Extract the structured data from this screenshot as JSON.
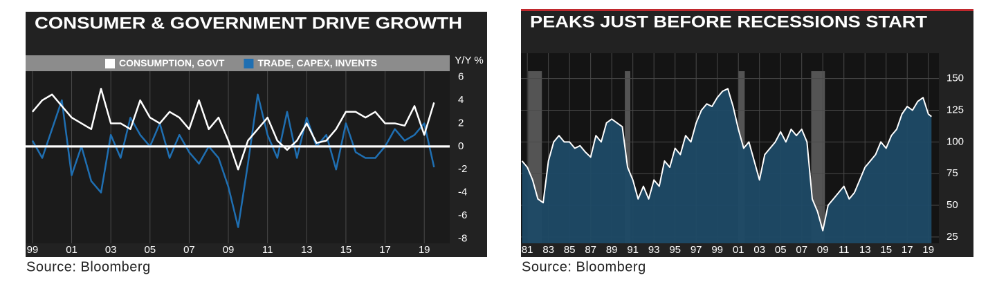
{
  "chart_data": [
    {
      "type": "line",
      "title": "CONSUMER & GOVERNMENT DRIVE GROWTH",
      "y_label": "Y/Y %",
      "source": "Source: Bloomberg",
      "x": [
        1999,
        1999.5,
        2000,
        2000.5,
        2001,
        2001.5,
        2002,
        2002.5,
        2003,
        2003.5,
        2004,
        2004.5,
        2005,
        2005.5,
        2006,
        2006.5,
        2007,
        2007.5,
        2008,
        2008.5,
        2009,
        2009.5,
        2010,
        2010.5,
        2011,
        2011.5,
        2012,
        2012.5,
        2013,
        2013.5,
        2014,
        2014.5,
        2015,
        2015.5,
        2016,
        2016.5,
        2017,
        2017.5,
        2018,
        2018.5,
        2019,
        2019.5
      ],
      "series": [
        {
          "name": "CONSUMPTION, GOVT",
          "color": "#ffffff",
          "values": [
            3,
            4,
            4.5,
            3.5,
            2.5,
            2,
            1.5,
            5,
            2,
            2,
            1.5,
            4,
            2.5,
            2,
            3,
            2.5,
            1.5,
            4,
            1.5,
            2.5,
            0.5,
            -2,
            0.5,
            1.5,
            2.5,
            0.5,
            -0.3,
            0.5,
            2,
            0.3,
            0.5,
            1.5,
            3,
            3,
            2.5,
            3,
            2,
            2,
            1.8,
            3.5,
            1,
            3.8
          ]
        },
        {
          "name": "TRADE, CAPEX, INVENTS",
          "color": "#1f6fb2",
          "values": [
            0.5,
            -1,
            1.5,
            4,
            -2.5,
            0,
            -3,
            -4,
            1,
            -1,
            2.5,
            1,
            0,
            2,
            -1,
            1,
            -0.5,
            -1.5,
            0,
            -1,
            -3.5,
            -7,
            -1.5,
            4.5,
            1,
            -1,
            3,
            -1,
            2.5,
            0,
            1,
            -2,
            2,
            -0.5,
            -1,
            -1,
            0,
            1.5,
            0.5,
            1,
            2,
            -1.8
          ]
        }
      ],
      "xlim": [
        1998.65,
        2020.3
      ],
      "xticks": [
        {
          "value": 1999,
          "label": "99"
        },
        {
          "value": 2001,
          "label": "01"
        },
        {
          "value": 2003,
          "label": "03"
        },
        {
          "value": 2005,
          "label": "05"
        },
        {
          "value": 2007,
          "label": "07"
        },
        {
          "value": 2009,
          "label": "09"
        },
        {
          "value": 2011,
          "label": "11"
        },
        {
          "value": 2013,
          "label": "13"
        },
        {
          "value": 2015,
          "label": "15"
        },
        {
          "value": 2017,
          "label": "17"
        },
        {
          "value": 2019,
          "label": "19"
        }
      ],
      "ylim": [
        -8.4,
        7.9
      ],
      "yticks": [
        6,
        4,
        2,
        0,
        -2,
        -4,
        -6,
        -8
      ],
      "grid": "x",
      "zero_line": true,
      "legend": "top"
    },
    {
      "type": "area",
      "title": "PEAKS JUST BEFORE RECESSIONS START",
      "source": "Source: Bloomberg",
      "x": [
        1980.5,
        1981,
        1981.5,
        1982,
        1982.5,
        1983,
        1983.5,
        1984,
        1984.5,
        1985,
        1985.5,
        1986,
        1986.5,
        1987,
        1987.5,
        1988,
        1988.5,
        1989,
        1989.5,
        1990,
        1990.5,
        1991,
        1991.5,
        1992,
        1992.5,
        1993,
        1993.5,
        1994,
        1994.5,
        1995,
        1995.5,
        1996,
        1996.5,
        1997,
        1997.5,
        1998,
        1998.5,
        1999,
        1999.5,
        2000,
        2000.5,
        2001,
        2001.5,
        2002,
        2002.5,
        2003,
        2003.5,
        2004,
        2004.5,
        2005,
        2005.5,
        2006,
        2006.5,
        2007,
        2007.5,
        2008,
        2008.5,
        2009,
        2009.5,
        2010,
        2010.5,
        2011,
        2011.5,
        2012,
        2012.5,
        2013,
        2013.5,
        2014,
        2014.5,
        2015,
        2015.5,
        2016,
        2016.5,
        2017,
        2017.5,
        2018,
        2018.5,
        2019,
        2019.3
      ],
      "values": [
        85,
        80,
        70,
        55,
        52,
        85,
        100,
        105,
        100,
        100,
        95,
        97,
        92,
        88,
        105,
        100,
        115,
        118,
        115,
        112,
        80,
        70,
        55,
        65,
        55,
        70,
        65,
        85,
        80,
        95,
        90,
        105,
        100,
        115,
        125,
        130,
        128,
        135,
        140,
        142,
        128,
        110,
        95,
        100,
        85,
        70,
        90,
        95,
        100,
        108,
        100,
        110,
        105,
        110,
        100,
        55,
        45,
        30,
        50,
        55,
        60,
        65,
        55,
        60,
        70,
        80,
        85,
        90,
        100,
        95,
        105,
        110,
        122,
        128,
        125,
        132,
        135,
        122,
        120
      ],
      "color": "#ffffff",
      "fill_color": "#1d4a66",
      "shaded_ranges": [
        [
          1981.07,
          1982.38
        ],
        [
          1990.24,
          1990.76
        ],
        [
          2001.0,
          2001.6
        ],
        [
          2007.9,
          2009.2
        ]
      ],
      "xlim": [
        1980.4,
        2020.0
      ],
      "xticks": [
        {
          "value": 1981,
          "label": "81"
        },
        {
          "value": 1983,
          "label": "83"
        },
        {
          "value": 1985,
          "label": "85"
        },
        {
          "value": 1987,
          "label": "87"
        },
        {
          "value": 1989,
          "label": "89"
        },
        {
          "value": 1991,
          "label": "91"
        },
        {
          "value": 1993,
          "label": "93"
        },
        {
          "value": 1995,
          "label": "95"
        },
        {
          "value": 1997,
          "label": "97"
        },
        {
          "value": 1999,
          "label": "99"
        },
        {
          "value": 2001,
          "label": "01"
        },
        {
          "value": 2003,
          "label": "03"
        },
        {
          "value": 2005,
          "label": "05"
        },
        {
          "value": 2007,
          "label": "07"
        },
        {
          "value": 2009,
          "label": "09"
        },
        {
          "value": 2011,
          "label": "11"
        },
        {
          "value": 2013,
          "label": "13"
        },
        {
          "value": 2015,
          "label": "15"
        },
        {
          "value": 2017,
          "label": "17"
        },
        {
          "value": 2019,
          "label": "19"
        }
      ],
      "ylim": [
        20,
        170
      ],
      "yticks": [
        25,
        50,
        75,
        100,
        125,
        150
      ],
      "grid": "both"
    }
  ]
}
